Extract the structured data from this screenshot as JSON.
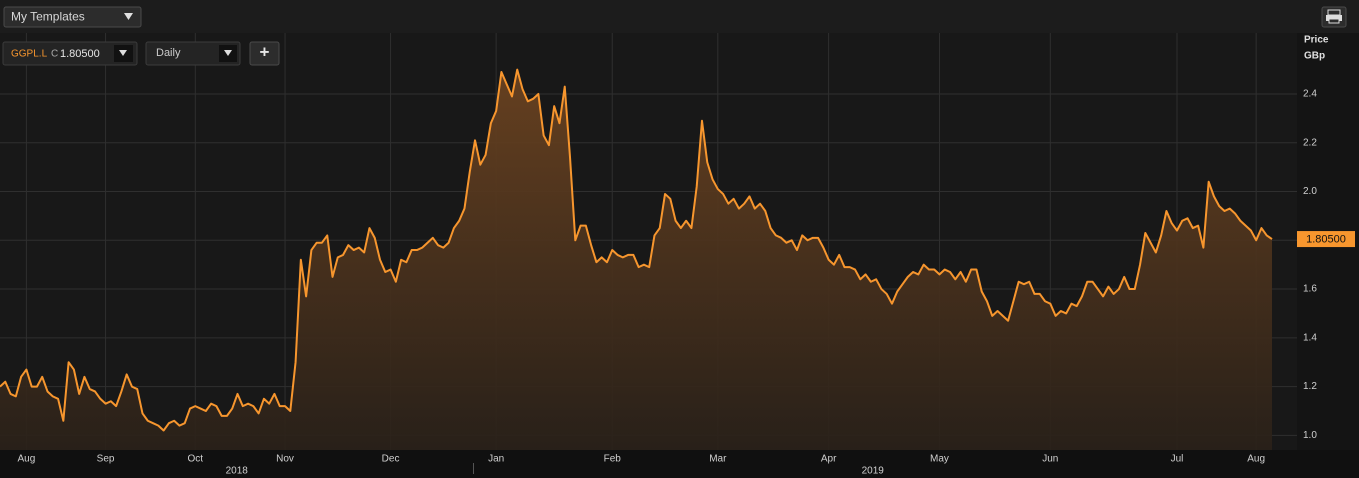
{
  "toolbar": {
    "templates": "My Templates",
    "instrument": "GGPL.L",
    "close_prefix": "C",
    "close": "1.80500",
    "interval": "Daily",
    "add": "+"
  },
  "chart_data": {
    "type": "area",
    "axis_label": "Price",
    "unit": "GBp",
    "last_label": "1.80500",
    "ylim": [
      0.94,
      2.65
    ],
    "yticks": [
      {
        "value": 1,
        "label": "1.0"
      },
      1.2,
      1.4,
      1.6,
      1.8,
      {
        "value": 2,
        "label": "2.0"
      },
      2.2,
      2.4
    ],
    "grid": true,
    "x_groups": [
      "2018",
      "2019"
    ],
    "categories": [
      null,
      null,
      null,
      null,
      null,
      "Aug",
      null,
      null,
      null,
      null,
      null,
      null,
      null,
      null,
      null,
      null,
      null,
      null,
      null,
      null,
      "Sep",
      null,
      null,
      null,
      null,
      null,
      null,
      null,
      null,
      null,
      null,
      null,
      null,
      null,
      null,
      null,
      null,
      "Oct",
      null,
      null,
      null,
      null,
      null,
      null,
      null,
      null,
      null,
      null,
      null,
      null,
      null,
      null,
      null,
      null,
      "Nov",
      null,
      null,
      null,
      null,
      null,
      null,
      null,
      null,
      null,
      null,
      null,
      null,
      null,
      null,
      null,
      null,
      null,
      null,
      null,
      "Dec",
      null,
      null,
      null,
      null,
      null,
      null,
      null,
      null,
      null,
      null,
      null,
      null,
      null,
      null,
      null,
      null,
      null,
      null,
      null,
      "Jan",
      null,
      null,
      null,
      null,
      null,
      null,
      null,
      null,
      null,
      null,
      null,
      null,
      null,
      null,
      null,
      null,
      null,
      null,
      null,
      null,
      null,
      "Feb",
      null,
      null,
      null,
      null,
      null,
      null,
      null,
      null,
      null,
      null,
      null,
      null,
      null,
      null,
      null,
      null,
      null,
      null,
      null,
      "Mar",
      null,
      null,
      null,
      null,
      null,
      null,
      null,
      null,
      null,
      null,
      null,
      null,
      null,
      null,
      null,
      null,
      null,
      null,
      null,
      null,
      "Apr",
      null,
      null,
      null,
      null,
      null,
      null,
      null,
      null,
      null,
      null,
      null,
      null,
      null,
      null,
      null,
      null,
      null,
      null,
      null,
      null,
      "May",
      null,
      null,
      null,
      null,
      null,
      null,
      null,
      null,
      null,
      null,
      null,
      null,
      null,
      null,
      null,
      null,
      null,
      null,
      null,
      null,
      "Jun",
      null,
      null,
      null,
      null,
      null,
      null,
      null,
      null,
      null,
      null,
      null,
      null,
      null,
      null,
      null,
      null,
      null,
      null,
      null,
      null,
      null,
      null,
      null,
      "Jul",
      null,
      null,
      null,
      null,
      null,
      null,
      null,
      null,
      null,
      null,
      null,
      null,
      null,
      null,
      "Aug",
      null,
      null,
      null
    ],
    "series": [
      {
        "name": "GGPL.L",
        "color": "#f7962e",
        "values": [
          1.2,
          1.22,
          1.17,
          1.16,
          1.24,
          1.27,
          1.2,
          1.2,
          1.24,
          1.18,
          1.16,
          1.15,
          1.06,
          1.3,
          1.27,
          1.17,
          1.24,
          1.19,
          1.18,
          1.15,
          1.13,
          1.14,
          1.12,
          1.18,
          1.25,
          1.2,
          1.19,
          1.09,
          1.06,
          1.05,
          1.04,
          1.02,
          1.05,
          1.06,
          1.04,
          1.05,
          1.11,
          1.12,
          1.11,
          1.1,
          1.13,
          1.12,
          1.08,
          1.08,
          1.11,
          1.17,
          1.12,
          1.13,
          1.12,
          1.09,
          1.15,
          1.13,
          1.17,
          1.12,
          1.12,
          1.1,
          1.3,
          1.72,
          1.57,
          1.76,
          1.79,
          1.79,
          1.82,
          1.65,
          1.73,
          1.74,
          1.78,
          1.76,
          1.77,
          1.75,
          1.85,
          1.81,
          1.72,
          1.67,
          1.68,
          1.63,
          1.72,
          1.71,
          1.76,
          1.76,
          1.77,
          1.79,
          1.81,
          1.78,
          1.77,
          1.79,
          1.85,
          1.88,
          1.93,
          2.08,
          2.21,
          2.11,
          2.15,
          2.28,
          2.33,
          2.49,
          2.44,
          2.39,
          2.5,
          2.42,
          2.37,
          2.38,
          2.4,
          2.23,
          2.19,
          2.35,
          2.28,
          2.43,
          2.14,
          1.8,
          1.86,
          1.86,
          1.78,
          1.71,
          1.73,
          1.71,
          1.76,
          1.74,
          1.73,
          1.74,
          1.74,
          1.69,
          1.7,
          1.69,
          1.82,
          1.85,
          1.99,
          1.97,
          1.88,
          1.85,
          1.88,
          1.85,
          2.02,
          2.29,
          2.12,
          2.05,
          2.01,
          1.99,
          1.95,
          1.97,
          1.93,
          1.95,
          1.98,
          1.93,
          1.95,
          1.92,
          1.85,
          1.82,
          1.81,
          1.79,
          1.8,
          1.76,
          1.82,
          1.8,
          1.81,
          1.81,
          1.77,
          1.72,
          1.7,
          1.74,
          1.69,
          1.69,
          1.68,
          1.64,
          1.66,
          1.63,
          1.64,
          1.6,
          1.58,
          1.54,
          1.59,
          1.62,
          1.65,
          1.67,
          1.66,
          1.7,
          1.68,
          1.68,
          1.66,
          1.68,
          1.67,
          1.64,
          1.67,
          1.63,
          1.68,
          1.68,
          1.59,
          1.55,
          1.49,
          1.51,
          1.49,
          1.47,
          1.55,
          1.63,
          1.62,
          1.63,
          1.58,
          1.58,
          1.55,
          1.54,
          1.49,
          1.51,
          1.5,
          1.54,
          1.53,
          1.57,
          1.63,
          1.63,
          1.6,
          1.57,
          1.61,
          1.58,
          1.6,
          1.65,
          1.6,
          1.6,
          1.7,
          1.83,
          1.79,
          1.75,
          1.82,
          1.92,
          1.87,
          1.84,
          1.88,
          1.89,
          1.85,
          1.86,
          1.77,
          2.04,
          1.98,
          1.94,
          1.92,
          1.93,
          1.91,
          1.88,
          1.86,
          1.84,
          1.8,
          1.85,
          1.82,
          1.805
        ]
      }
    ]
  }
}
